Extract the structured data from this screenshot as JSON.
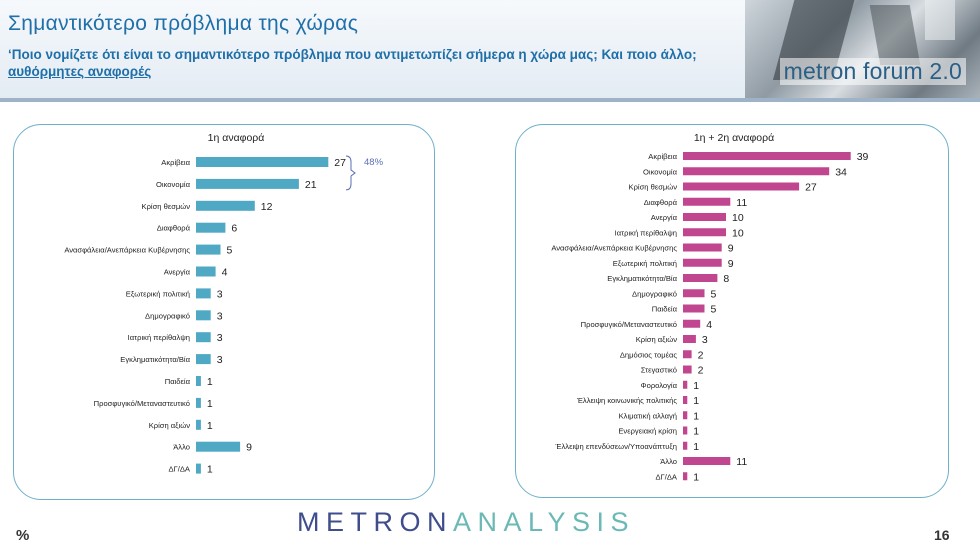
{
  "header": {
    "title": "Σημαντικότερο πρόβλημα της χώρας",
    "subtitle": "‘Ποιο νομίζετε ότι  είναι το σημαντικότερο πρόβλημα που αντιμετωπίζει σήμερα η χώρα μας; Και ποιο άλλο;",
    "subtitle_link": "αυθόρμητες αναφορές",
    "brand": "metron forum 2.0"
  },
  "footer": {
    "logo_part1": "METRON",
    "logo_part2": "ANALYSIS",
    "percent_sign": "%",
    "page_number": "16"
  },
  "colors": {
    "left_bars": "#4fa8c4",
    "right_bars": "#c0478f",
    "panel_border": "#6fb0c9",
    "bracket": "#5a6fb8"
  },
  "chart_data": [
    {
      "type": "bar",
      "orientation": "horizontal",
      "title": "1η αναφορά",
      "categories": [
        "Ακρίβεια",
        "Οικονομία",
        "Κρίση θεσμών",
        "Διαφθορά",
        "Ανασφάλεια/Ανεπάρκεια Κυβέρνησης",
        "Ανεργία",
        "Εξωτερική πολιτική",
        "Δημογραφικό",
        "Ιατρική περίθαλψη",
        "Εγκληματικότητα/Βία",
        "Παιδεία",
        "Προσφυγικό/Μεταναστευτικό",
        "Κρίση αξιών",
        "Άλλο",
        "ΔΓ/ΔΑ"
      ],
      "values": [
        27,
        21,
        12,
        6,
        5,
        4,
        3,
        3,
        3,
        3,
        1,
        1,
        1,
        9,
        1
      ],
      "annotation": {
        "label": "48%",
        "spans": [
          "Ακρίβεια",
          "Οικονομία"
        ]
      },
      "xlim": [
        0,
        30
      ],
      "grid": false
    },
    {
      "type": "bar",
      "orientation": "horizontal",
      "title": "1η + 2η αναφορά",
      "categories": [
        "Ακρίβεια",
        "Οικονομία",
        "Κρίση θεσμών",
        "Διαφθορά",
        "Ανεργία",
        "Ιατρική περίθαλψη",
        "Ανασφάλεια/Ανεπάρκεια Κυβέρνησης",
        "Εξωτερική πολιτική",
        "Εγκληματικότητα/Βία",
        "Δημογραφικό",
        "Παιδεία",
        "Προσφυγικό/Μεταναστευτικό",
        "Κρίση αξιών",
        "Δημόσιος τομέας",
        "Στεγαστικό",
        "Φορολογία",
        "Έλλειψη κοινωνικής πολιτικής",
        "Κλιματική αλλαγή",
        "Ενεργειακή κρίση",
        "Έλλειψη επενδύσεων/Υποανάπτυξη",
        "Άλλο",
        "ΔΓ/ΔΑ"
      ],
      "values": [
        39,
        34,
        27,
        11,
        10,
        10,
        9,
        9,
        8,
        5,
        5,
        4,
        3,
        2,
        2,
        1,
        1,
        1,
        1,
        1,
        11,
        1
      ],
      "xlim": [
        0,
        42
      ],
      "grid": false
    }
  ]
}
